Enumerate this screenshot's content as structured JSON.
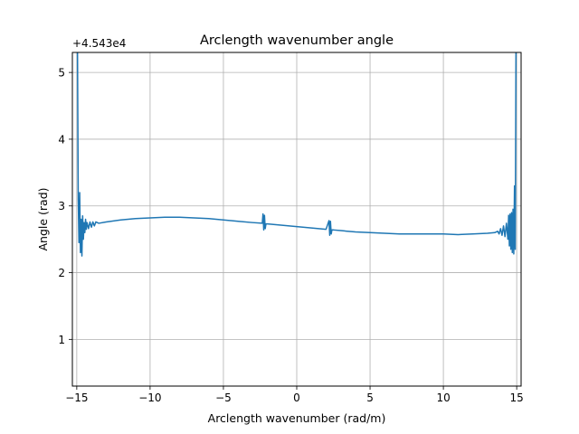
{
  "chart_data": {
    "type": "line",
    "title": "Arclength wavenumber angle",
    "xlabel": "Arclength wavenumber (rad/m)",
    "ylabel": "Angle (rad)",
    "offset_label": "+4.543e4",
    "xlim": [
      -15.3,
      15.3
    ],
    "ylim": [
      0.3,
      5.3
    ],
    "xticks": [
      -15,
      -10,
      -5,
      0,
      5,
      10,
      15
    ],
    "xtick_labels": [
      "−15",
      "−10",
      "−5",
      "0",
      "5",
      "10",
      "15"
    ],
    "yticks": [
      1,
      2,
      3,
      4,
      5
    ],
    "ytick_labels": [
      "1",
      "2",
      "3",
      "4",
      "5"
    ],
    "grid": true,
    "colors": {
      "line": "#1f77b4",
      "grid": "#b0b0b0",
      "axes": "#000000"
    },
    "series": [
      {
        "x": [
          -14.95,
          -14.9,
          -14.85,
          -14.8,
          -14.75,
          -14.7,
          -14.65,
          -14.6,
          -14.55,
          -14.5,
          -14.45,
          -14.4,
          -14.35,
          -14.3,
          -14.2,
          -14.1,
          -14.0,
          -13.9,
          -13.8,
          -13.7,
          -13.5,
          -13.0,
          -12.0,
          -11.0,
          -10.0,
          -9.0,
          -8.0,
          -7.0,
          -6.0,
          -5.0,
          -4.0,
          -3.0,
          -2.35,
          -2.3,
          -2.25,
          -2.2,
          -2.15,
          -2.1,
          -2.0,
          -1.0,
          0.0,
          1.0,
          2.0,
          2.2,
          2.25,
          2.3,
          2.35,
          2.4,
          2.5,
          3.0,
          4.0,
          5.0,
          6.0,
          7.0,
          8.0,
          9.0,
          10.0,
          11.0,
          12.0,
          13.0,
          13.5,
          13.7,
          13.8,
          13.9,
          14.0,
          14.1,
          14.2,
          14.3,
          14.4,
          14.45,
          14.5,
          14.55,
          14.6,
          14.65,
          14.7,
          14.75,
          14.8,
          14.85,
          14.9,
          14.95
        ],
        "y": [
          5.3,
          3.1,
          2.45,
          3.2,
          2.3,
          2.8,
          2.25,
          2.85,
          2.5,
          2.75,
          2.6,
          2.8,
          2.65,
          2.75,
          2.66,
          2.76,
          2.68,
          2.76,
          2.7,
          2.76,
          2.74,
          2.76,
          2.79,
          2.81,
          2.82,
          2.83,
          2.83,
          2.82,
          2.81,
          2.79,
          2.77,
          2.75,
          2.74,
          2.88,
          2.64,
          2.86,
          2.66,
          2.73,
          2.73,
          2.71,
          2.69,
          2.67,
          2.65,
          2.78,
          2.56,
          2.77,
          2.58,
          2.64,
          2.64,
          2.63,
          2.61,
          2.6,
          2.59,
          2.58,
          2.58,
          2.58,
          2.58,
          2.57,
          2.58,
          2.59,
          2.6,
          2.62,
          2.58,
          2.66,
          2.56,
          2.7,
          2.54,
          2.74,
          2.5,
          2.86,
          2.4,
          2.88,
          2.35,
          2.9,
          2.3,
          2.95,
          2.28,
          3.3,
          2.35,
          5.3
        ]
      }
    ]
  }
}
